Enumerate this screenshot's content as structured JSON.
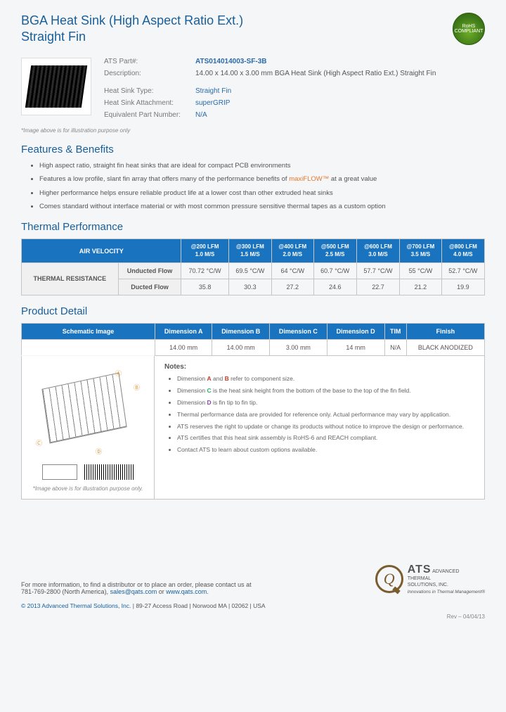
{
  "header": {
    "title_line1": "BGA Heat Sink (High Aspect Ratio Ext.)",
    "title_line2": "Straight Fin",
    "rohs": "RoHS COMPLIANT"
  },
  "part": {
    "labels": {
      "part": "ATS Part#:",
      "desc": "Description:",
      "type": "Heat Sink Type:",
      "attach": "Heat Sink Attachment:",
      "equiv": "Equivalent Part Number:"
    },
    "part_no": "ATS014014003-SF-3B",
    "description": "14.00 x 14.00 x 3.00 mm  BGA Heat Sink (High Aspect Ratio Ext.) Straight Fin",
    "type": "Straight Fin",
    "attachment": "superGRIP",
    "equivalent": "N/A",
    "img_note": "*Image above is for illustration purpose only"
  },
  "features": {
    "heading": "Features & Benefits",
    "items": [
      "High aspect ratio, straight fin heat sinks that are ideal for compact PCB environments",
      "Features a low profile, slant fin array that offers many of the performance benefits of |maxiFLOW™| at a great value",
      "Higher performance helps ensure reliable product life at a lower cost than other extruded heat sinks",
      "Comes standard without interface material or with most common pressure sensitive thermal tapes as a custom option"
    ]
  },
  "thermal": {
    "heading": "Thermal Performance",
    "air_velocity_label": "AIR VELOCITY",
    "cols": [
      {
        "top": "@200 LFM",
        "bot": "1.0 M/S"
      },
      {
        "top": "@300 LFM",
        "bot": "1.5 M/S"
      },
      {
        "top": "@400 LFM",
        "bot": "2.0 M/S"
      },
      {
        "top": "@500 LFM",
        "bot": "2.5 M/S"
      },
      {
        "top": "@600 LFM",
        "bot": "3.0 M/S"
      },
      {
        "top": "@700 LFM",
        "bot": "3.5 M/S"
      },
      {
        "top": "@800 LFM",
        "bot": "4.0 M/S"
      }
    ],
    "resistance_label": "THERMAL RESISTANCE",
    "rows": [
      {
        "name": "Unducted Flow",
        "vals": [
          "70.72 °C/W",
          "69.5 °C/W",
          "64 °C/W",
          "60.7 °C/W",
          "57.7 °C/W",
          "55 °C/W",
          "52.7 °C/W"
        ]
      },
      {
        "name": "Ducted Flow",
        "vals": [
          "35.8",
          "30.3",
          "27.2",
          "24.6",
          "22.7",
          "21.2",
          "19.9"
        ]
      }
    ]
  },
  "detail": {
    "heading": "Product Detail",
    "cols": [
      "Schematic Image",
      "Dimension A",
      "Dimension B",
      "Dimension C",
      "Dimension D",
      "TIM",
      "Finish"
    ],
    "vals": [
      "14.00 mm",
      "14.00 mm",
      "3.00 mm",
      "14 mm",
      "N/A",
      "BLACK ANODIZED"
    ],
    "schem_note": "*Image above is for illustration purpose only.",
    "notes_title": "Notes:",
    "notes": [
      "Dimension |A| and |B| refer to component size.",
      "Dimension |C| is the heat sink height from the bottom of the base to the top of the fin field.",
      "Dimension |D| is fin tip to fin tip.",
      "Thermal performance data are provided for reference only. Actual performance may vary by application.",
      "ATS reserves the right to update or change its products without notice to improve the design or performance.",
      "ATS certifies that this heat sink assembly is RoHS-6 and REACH compliant.",
      "Contact ATS to learn about custom options available."
    ]
  },
  "footer": {
    "contact1": "For more information, to find a distributor or to place an order, please contact us at",
    "phone": "781-769-2800 (North America),",
    "email": "sales@qats.com",
    "or": " or ",
    "web": "www.qats.com",
    "copyright_c": "© 2013 Advanced Thermal Solutions, Inc.",
    "copyright_rest": " | 89-27 Access Road | Norwood MA | 02062 | USA",
    "logo_name": "ATS",
    "logo_sub1": "ADVANCED",
    "logo_sub2": "THERMAL",
    "logo_sub3": "SOLUTIONS, INC.",
    "logo_tag": "Innovations in Thermal Management®",
    "rev": "Rev – 04/04/13"
  },
  "colors": {
    "heading": "#185e99",
    "table_header": "#1a73bf",
    "orange": "#e8762d"
  }
}
